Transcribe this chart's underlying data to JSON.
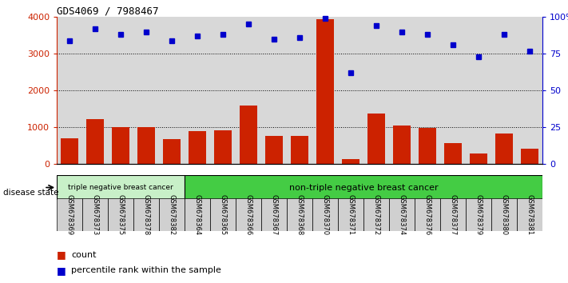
{
  "title": "GDS4069 / 7988467",
  "samples": [
    "GSM678369",
    "GSM678373",
    "GSM678375",
    "GSM678378",
    "GSM678382",
    "GSM678364",
    "GSM678365",
    "GSM678366",
    "GSM678367",
    "GSM678368",
    "GSM678370",
    "GSM678371",
    "GSM678372",
    "GSM678374",
    "GSM678376",
    "GSM678377",
    "GSM678379",
    "GSM678380",
    "GSM678381"
  ],
  "counts": [
    700,
    1230,
    1000,
    1010,
    670,
    900,
    910,
    1590,
    760,
    760,
    3950,
    130,
    1380,
    1060,
    990,
    580,
    300,
    830,
    420
  ],
  "percentiles": [
    84,
    92,
    88,
    90,
    84,
    87,
    88,
    95,
    85,
    86,
    99,
    62,
    94,
    90,
    88,
    81,
    73,
    88,
    77
  ],
  "triple_neg_count": 5,
  "bar_color": "#cc2200",
  "dot_color": "#0000cc",
  "triple_neg_color": "#c8f0c8",
  "non_triple_neg_color": "#44cc44",
  "bg_color": "#d8d8d8",
  "tick_bg_color": "#d0d0d0",
  "ylim_left": [
    0,
    4000
  ],
  "ylim_right": [
    0,
    100
  ],
  "yticks_left": [
    0,
    1000,
    2000,
    3000,
    4000
  ],
  "yticks_right": [
    0,
    25,
    50,
    75,
    100
  ],
  "ytick_labels_right": [
    "0",
    "25",
    "50",
    "75",
    "100%"
  ],
  "grid_lines": [
    1000,
    2000,
    3000
  ],
  "legend_count": "count",
  "legend_percentile": "percentile rank within the sample",
  "disease_state_label": "disease state"
}
